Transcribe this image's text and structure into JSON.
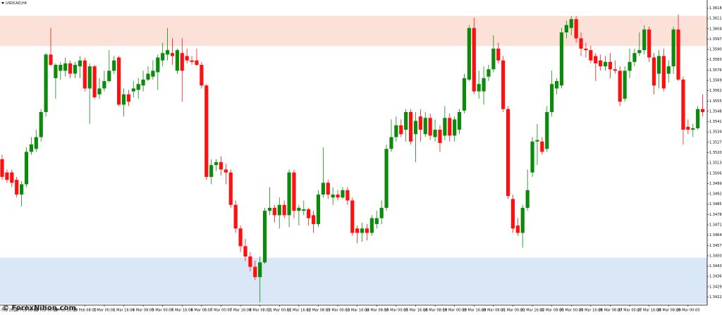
{
  "chart_data": {
    "type": "candlestick",
    "title": "USDCAD,H4",
    "watermark": "© ForexNihon.com",
    "up_color": "#0b8a0b",
    "down_color": "#ff1010",
    "ylim": [
      1.3417,
      1.3624
    ],
    "yticks": [
      1.36185,
      1.36115,
      1.36045,
      1.35975,
      1.35905,
      1.35835,
      1.35765,
      1.35695,
      1.35625,
      1.35555,
      1.35485,
      1.35415,
      1.35345,
      1.35275,
      1.35205,
      1.35135,
      1.35065,
      1.34995,
      1.34925,
      1.34855,
      1.34785,
      1.34715,
      1.34645,
      1.34575,
      1.34505,
      1.34435,
      1.34365,
      1.34295,
      1.34225
    ],
    "zones": [
      {
        "from": 1.3593,
        "to": 1.3613,
        "color": "#fbe1d7"
      },
      {
        "from": 1.3418,
        "to": 1.3449,
        "color": "#d9e7f7"
      }
    ],
    "categories": [
      null,
      "26 Feb 2024",
      null,
      null,
      null,
      "27 Feb 08:00",
      null,
      null,
      null,
      "28 Feb 00:00",
      null,
      null,
      null,
      "28 Feb 16:00",
      null,
      null,
      null,
      "29 Feb 08:00",
      null,
      null,
      null,
      "1 Mar 00:00",
      null,
      null,
      null,
      "1 Mar 16:00",
      null,
      null,
      null,
      "4 Mar 08:00",
      null,
      null,
      null,
      "5 Mar 00:00",
      null,
      null,
      null,
      "5 Mar 16:00",
      null,
      null,
      null,
      "6 Mar 08:00",
      null,
      null,
      null,
      "7 Mar 00:00",
      null,
      null,
      null,
      "7 Mar 16:00",
      null,
      null,
      null,
      "8 Mar 08:00",
      null,
      null,
      null,
      "11 Mar 00:00",
      null,
      null,
      null,
      "11 Mar 16:00",
      null,
      null,
      null,
      "12 Mar 08:00",
      null,
      null,
      null,
      "13 Mar 00:00",
      null,
      null,
      null,
      "13 Mar 16:00",
      null,
      null,
      null,
      "14 Mar 08:00",
      null,
      null,
      null,
      "15 Mar 00:00",
      null,
      null,
      null,
      "15 Mar 16:00",
      null,
      null,
      null,
      "18 Mar 08:00",
      null,
      null,
      null,
      "19 Mar 00:00",
      null,
      null,
      null,
      "19 Mar 16:00",
      null,
      null,
      null,
      "20 Mar 08:00",
      null,
      null,
      null,
      "21 Mar 00:00",
      null,
      null,
      null,
      "21 Mar 16:00",
      null,
      null,
      null,
      "22 Mar 08:00",
      null,
      null,
      null,
      "25 Mar 00:00",
      null,
      null,
      null,
      "25 Mar 16:00",
      null,
      null,
      null,
      "26 Mar 08:00",
      null,
      null,
      null,
      "27 Mar 00:00",
      null,
      null,
      null,
      "27 Mar 16:00",
      null,
      null,
      null,
      "28 Mar 08:00",
      null,
      null,
      null,
      "29 Mar 00:00",
      null,
      null,
      null
    ],
    "open": [
      1.3516,
      1.3507,
      1.3507,
      1.3502,
      1.3492,
      1.3499,
      1.3521,
      1.3523,
      1.3531,
      1.3548,
      1.3587,
      1.3571,
      1.3576,
      1.3576,
      1.3581,
      1.3574,
      1.3579,
      1.3583,
      1.3564,
      1.3579,
      1.356,
      1.3564,
      1.3569,
      1.3576,
      1.3585,
      1.3553,
      1.356,
      1.3562,
      1.3563,
      1.3566,
      1.357,
      1.3572,
      1.3575,
      1.3583,
      1.3587,
      1.3588,
      1.3576,
      1.3588,
      1.3586,
      1.3583,
      1.3583,
      1.358,
      1.3566,
      1.3504,
      1.3512,
      1.3514,
      1.3509,
      1.3507,
      1.3485,
      1.3469,
      1.3457,
      1.345,
      1.3443,
      1.3436,
      1.3446,
      1.3481,
      1.3483,
      1.3478,
      1.3485,
      1.3478,
      1.3507,
      1.3481,
      1.3481,
      1.3482,
      1.3478,
      1.3472,
      1.3492,
      1.35,
      1.349,
      1.3492,
      1.349,
      1.3495,
      1.3488,
      1.3469,
      1.3466,
      1.3469,
      1.3466,
      1.3472,
      1.3476,
      1.3483,
      1.3523,
      1.3531,
      1.3539,
      1.3536,
      1.3548,
      1.3533,
      1.3545,
      1.3533,
      1.3544,
      1.3531,
      1.3536,
      1.3532,
      1.3544,
      1.3532,
      1.3536,
      1.3549,
      1.357,
      1.3605,
      1.3562,
      1.3562,
      1.3572,
      1.3577,
      1.3591,
      1.3583,
      1.355,
      1.3489,
      1.3471,
      1.3466,
      1.3483,
      1.3507,
      1.3528,
      1.3528,
      1.3523,
      1.3548,
      1.3564,
      1.3566,
      1.3602,
      1.3605,
      1.3611,
      1.3598,
      1.3591,
      1.359,
      1.3586,
      1.3583,
      1.3579,
      1.3582,
      1.3577,
      1.3576,
      1.3557,
      1.3576,
      1.3582,
      1.3588,
      1.359,
      1.3604,
      1.3585,
      1.3574,
      1.3586,
      1.3574,
      1.3579,
      1.3604,
      1.357,
      1.3538,
      1.3536,
      1.3537,
      1.355
    ],
    "high": [
      1.3519,
      1.3509,
      1.3509,
      1.3504,
      1.3501,
      1.3524,
      1.3531,
      1.3536,
      1.355,
      1.3588,
      1.3605,
      1.3581,
      1.3582,
      1.3585,
      1.3583,
      1.3582,
      1.3586,
      1.3585,
      1.3581,
      1.358,
      1.3571,
      1.3576,
      1.359,
      1.3586,
      1.3586,
      1.3564,
      1.3563,
      1.3569,
      1.3571,
      1.3576,
      1.3579,
      1.3583,
      1.3587,
      1.3595,
      1.3605,
      1.3598,
      1.3591,
      1.3598,
      1.3591,
      1.3586,
      1.3591,
      1.3582,
      1.3567,
      1.3516,
      1.3516,
      1.3518,
      1.3513,
      1.3509,
      1.3488,
      1.3471,
      1.3462,
      1.3453,
      1.3447,
      1.345,
      1.3483,
      1.3497,
      1.3485,
      1.349,
      1.3488,
      1.3509,
      1.3509,
      1.3485,
      1.3488,
      1.3483,
      1.3481,
      1.3495,
      1.3524,
      1.3502,
      1.3497,
      1.3495,
      1.3497,
      1.3497,
      1.349,
      1.3471,
      1.3473,
      1.3472,
      1.3478,
      1.3481,
      1.3488,
      1.3526,
      1.3543,
      1.3545,
      1.3543,
      1.355,
      1.355,
      1.3548,
      1.355,
      1.3548,
      1.3547,
      1.3543,
      1.3539,
      1.3552,
      1.3547,
      1.3545,
      1.355,
      1.3574,
      1.3607,
      1.3612,
      1.3576,
      1.3579,
      1.358,
      1.36,
      1.3595,
      1.3586,
      1.3552,
      1.3492,
      1.3476,
      1.3485,
      1.3509,
      1.3531,
      1.354,
      1.3531,
      1.3552,
      1.3576,
      1.3571,
      1.3605,
      1.361,
      1.3613,
      1.3613,
      1.3602,
      1.3595,
      1.3593,
      1.3588,
      1.3587,
      1.3586,
      1.3588,
      1.3583,
      1.3579,
      1.3579,
      1.3591,
      1.3591,
      1.3602,
      1.3607,
      1.3606,
      1.3588,
      1.359,
      1.3591,
      1.3583,
      1.3606,
      1.3614,
      1.3572,
      1.3543,
      1.354,
      1.3552,
      1.356
    ],
    "low": [
      1.3502,
      1.35,
      1.3497,
      1.349,
      1.3484,
      1.3497,
      1.3519,
      1.3521,
      1.3528,
      1.3545,
      1.3579,
      1.3557,
      1.357,
      1.3572,
      1.3571,
      1.3571,
      1.3571,
      1.3562,
      1.354,
      1.3557,
      1.3557,
      1.3562,
      1.3568,
      1.3574,
      1.3552,
      1.3545,
      1.3552,
      1.3558,
      1.3557,
      1.3562,
      1.3569,
      1.357,
      1.3563,
      1.3579,
      1.3583,
      1.358,
      1.3574,
      1.3555,
      1.3581,
      1.358,
      1.3579,
      1.3564,
      1.3502,
      1.3499,
      1.3508,
      1.3505,
      1.3499,
      1.3483,
      1.3466,
      1.3453,
      1.3447,
      1.344,
      1.3434,
      1.3419,
      1.3445,
      1.3478,
      1.3473,
      1.3469,
      1.3476,
      1.347,
      1.3476,
      1.3471,
      1.3478,
      1.3471,
      1.3466,
      1.347,
      1.349,
      1.3489,
      1.3485,
      1.3488,
      1.3489,
      1.3485,
      1.3464,
      1.3459,
      1.346,
      1.3461,
      1.3464,
      1.3469,
      1.3472,
      1.3481,
      1.3521,
      1.3528,
      1.3531,
      1.3528,
      1.3526,
      1.3514,
      1.3528,
      1.3531,
      1.3529,
      1.3528,
      1.3521,
      1.3529,
      1.3528,
      1.3528,
      1.3533,
      1.3547,
      1.3569,
      1.356,
      1.3557,
      1.3553,
      1.3569,
      1.3575,
      1.3581,
      1.3548,
      1.3489,
      1.3466,
      1.3464,
      1.3456,
      1.3481,
      1.3504,
      1.3512,
      1.3519,
      1.3521,
      1.3545,
      1.356,
      1.3564,
      1.3598,
      1.36,
      1.3595,
      1.3586,
      1.3585,
      1.3581,
      1.3569,
      1.3576,
      1.3576,
      1.3571,
      1.3574,
      1.3552,
      1.3555,
      1.3571,
      1.3579,
      1.3586,
      1.3587,
      1.3582,
      1.356,
      1.3564,
      1.3562,
      1.3568,
      1.3574,
      1.3569,
      1.3526,
      1.3533,
      1.3531,
      1.3536,
      1.3545
    ],
    "close": [
      1.3504,
      1.3502,
      1.35,
      1.3492,
      1.3499,
      1.3521,
      1.3526,
      1.3531,
      1.3548,
      1.3587,
      1.358,
      1.358,
      1.358,
      1.3581,
      1.3574,
      1.358,
      1.3583,
      1.3564,
      1.3579,
      1.3558,
      1.3564,
      1.3569,
      1.3576,
      1.3583,
      1.3553,
      1.356,
      1.3555,
      1.3564,
      1.3567,
      1.357,
      1.3574,
      1.3576,
      1.3585,
      1.3588,
      1.359,
      1.3586,
      1.359,
      1.3576,
      1.3583,
      1.3582,
      1.358,
      1.3566,
      1.3504,
      1.3512,
      1.3514,
      1.3509,
      1.3507,
      1.3485,
      1.3469,
      1.3457,
      1.345,
      1.3443,
      1.3436,
      1.3446,
      1.3481,
      1.3483,
      1.3478,
      1.3485,
      1.3478,
      1.3507,
      1.3481,
      1.3483,
      1.3482,
      1.3476,
      1.3472,
      1.3492,
      1.35,
      1.3492,
      1.3492,
      1.349,
      1.3495,
      1.3488,
      1.3466,
      1.3466,
      1.3469,
      1.3466,
      1.3476,
      1.3476,
      1.3483,
      1.3523,
      1.3531,
      1.3539,
      1.3533,
      1.3548,
      1.3528,
      1.3542,
      1.3536,
      1.3544,
      1.3532,
      1.3536,
      1.3527,
      1.3544,
      1.3532,
      1.3543,
      1.3548,
      1.3571,
      1.3605,
      1.3562,
      1.3567,
      1.3571,
      1.3577,
      1.3591,
      1.3583,
      1.355,
      1.3491,
      1.3469,
      1.3466,
      1.3483,
      1.3495,
      1.3528,
      1.3529,
      1.3521,
      1.3548,
      1.3567,
      1.3569,
      1.3602,
      1.3607,
      1.3611,
      1.3598,
      1.3591,
      1.359,
      1.3583,
      1.3581,
      1.3579,
      1.3582,
      1.3577,
      1.3576,
      1.3555,
      1.3576,
      1.3582,
      1.3588,
      1.359,
      1.3604,
      1.3585,
      1.3566,
      1.3586,
      1.3564,
      1.3579,
      1.3604,
      1.357,
      1.3536,
      1.3536,
      1.3537,
      1.355,
      1.3548
    ]
  }
}
